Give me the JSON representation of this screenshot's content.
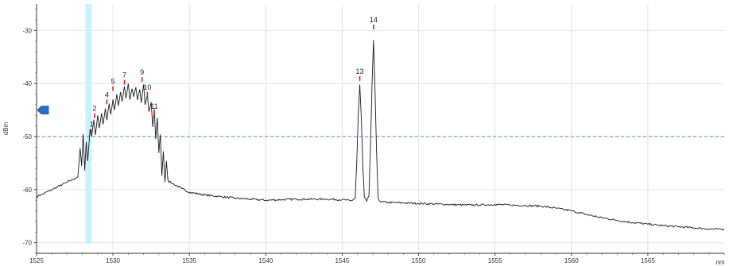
{
  "chart_data": {
    "type": "line",
    "title": "",
    "xlabel": "nm",
    "ylabel": "dBm",
    "xlim": [
      1525,
      1570
    ],
    "ylim": [
      -72,
      -25
    ],
    "x_ticks": [
      "1525",
      "1530",
      "1535",
      "1540",
      "1545",
      "1550",
      "1555",
      "1560",
      "1565"
    ],
    "y_ticks": [
      "-30",
      "-40",
      "-50",
      "-60",
      "-70"
    ],
    "threshold_dbm": -50,
    "reference_marker_dbm": -45,
    "highlight_band_nm": [
      1528.2,
      1528.6
    ],
    "grid": true,
    "colors": {
      "trace": "#1a1a1a",
      "peak_highlight": "#e02020",
      "threshold_line": "#5a8ac0",
      "highlight_band": "#c8f3fb",
      "marker": "#2a6fc4",
      "grid": "#e6e6e6"
    },
    "series": [
      {
        "points": [
          [
            1525.0,
            -61.3
          ],
          [
            1525.5,
            -60.7
          ],
          [
            1526.0,
            -60.0
          ],
          [
            1526.5,
            -59.3
          ],
          [
            1527.0,
            -58.6
          ],
          [
            1527.5,
            -57.9
          ],
          [
            1527.7,
            -57.6
          ],
          [
            1527.85,
            -52.2
          ],
          [
            1527.95,
            -55.5
          ],
          [
            1528.05,
            -49.5
          ],
          [
            1528.15,
            -56.4
          ],
          [
            1528.25,
            -51.0
          ],
          [
            1528.35,
            -54.6
          ],
          [
            1528.5,
            -48.6
          ],
          [
            1528.6,
            -50.0
          ],
          [
            1528.75,
            -46.8
          ],
          [
            1528.85,
            -49.7
          ],
          [
            1529.0,
            -46.0
          ],
          [
            1529.1,
            -48.4
          ],
          [
            1529.25,
            -45.6
          ],
          [
            1529.35,
            -47.7
          ],
          [
            1529.5,
            -44.7
          ],
          [
            1529.6,
            -46.9
          ],
          [
            1529.75,
            -43.8
          ],
          [
            1529.85,
            -45.8
          ],
          [
            1530.0,
            -43.0
          ],
          [
            1530.1,
            -45.0
          ],
          [
            1530.25,
            -42.0
          ],
          [
            1530.35,
            -44.2
          ],
          [
            1530.5,
            -41.6
          ],
          [
            1530.6,
            -43.4
          ],
          [
            1530.75,
            -40.5
          ],
          [
            1530.85,
            -42.8
          ],
          [
            1531.0,
            -40.0
          ],
          [
            1531.1,
            -43.0
          ],
          [
            1531.25,
            -41.0
          ],
          [
            1531.35,
            -42.5
          ],
          [
            1531.5,
            -40.7
          ],
          [
            1531.6,
            -43.1
          ],
          [
            1531.75,
            -41.1
          ],
          [
            1531.85,
            -43.6
          ],
          [
            1532.0,
            -40.2
          ],
          [
            1532.1,
            -44.0
          ],
          [
            1532.25,
            -42.1
          ],
          [
            1532.35,
            -45.3
          ],
          [
            1532.5,
            -43.5
          ],
          [
            1532.6,
            -48.2
          ],
          [
            1532.7,
            -44.8
          ],
          [
            1532.8,
            -50.5
          ],
          [
            1532.9,
            -46.4
          ],
          [
            1533.0,
            -53.1
          ],
          [
            1533.1,
            -49.6
          ],
          [
            1533.2,
            -57.4
          ],
          [
            1533.3,
            -52.8
          ],
          [
            1533.4,
            -58.6
          ],
          [
            1533.5,
            -54.6
          ],
          [
            1533.6,
            -58.3
          ],
          [
            1533.8,
            -58.7
          ],
          [
            1534.0,
            -59.0
          ],
          [
            1534.5,
            -59.8
          ],
          [
            1535.0,
            -60.5
          ],
          [
            1536.0,
            -61.0
          ],
          [
            1537.0,
            -61.3
          ],
          [
            1538.0,
            -61.6
          ],
          [
            1539.0,
            -61.8
          ],
          [
            1540.0,
            -62.0
          ],
          [
            1541.0,
            -61.9
          ],
          [
            1542.0,
            -61.8
          ],
          [
            1543.0,
            -61.8
          ],
          [
            1544.0,
            -61.8
          ],
          [
            1545.0,
            -61.9
          ],
          [
            1545.6,
            -62.1
          ],
          [
            1545.85,
            -61.6
          ],
          [
            1545.95,
            -55.0
          ],
          [
            1546.05,
            -46.0
          ],
          [
            1546.15,
            -40.2
          ],
          [
            1546.25,
            -46.5
          ],
          [
            1546.35,
            -55.5
          ],
          [
            1546.45,
            -61.4
          ],
          [
            1546.6,
            -62.2
          ],
          [
            1546.75,
            -61.2
          ],
          [
            1546.85,
            -52.0
          ],
          [
            1546.95,
            -40.5
          ],
          [
            1547.05,
            -31.8
          ],
          [
            1547.15,
            -41.5
          ],
          [
            1547.25,
            -53.0
          ],
          [
            1547.35,
            -61.6
          ],
          [
            1547.5,
            -62.3
          ],
          [
            1548.0,
            -62.4
          ],
          [
            1549.0,
            -62.5
          ],
          [
            1550.0,
            -62.6
          ],
          [
            1551.0,
            -62.7
          ],
          [
            1552.0,
            -62.8
          ],
          [
            1553.0,
            -62.9
          ],
          [
            1554.0,
            -62.9
          ],
          [
            1555.0,
            -62.8
          ],
          [
            1556.0,
            -62.9
          ],
          [
            1557.0,
            -63.0
          ],
          [
            1558.0,
            -63.1
          ],
          [
            1559.0,
            -63.5
          ],
          [
            1560.0,
            -64.0
          ],
          [
            1561.0,
            -64.7
          ],
          [
            1562.0,
            -65.3
          ],
          [
            1563.0,
            -65.8
          ],
          [
            1564.0,
            -66.2
          ],
          [
            1565.0,
            -66.5
          ],
          [
            1566.0,
            -66.8
          ],
          [
            1567.0,
            -67.0
          ],
          [
            1568.0,
            -67.2
          ],
          [
            1569.0,
            -67.4
          ],
          [
            1570.0,
            -67.5
          ]
        ]
      }
    ],
    "peaks": [
      {
        "label": "1",
        "x": 1528.6,
        "y": -48.6
      },
      {
        "label": "2",
        "x": 1528.8,
        "y": -45.6
      },
      {
        "label": "4",
        "x": 1529.6,
        "y": -43.0
      },
      {
        "label": "5",
        "x": 1530.0,
        "y": -40.5
      },
      {
        "label": "7",
        "x": 1530.75,
        "y": -39.3
      },
      {
        "label": "9",
        "x": 1531.9,
        "y": -38.8
      },
      {
        "label": "10",
        "x": 1532.25,
        "y": -41.6
      },
      {
        "label": "11",
        "x": 1532.7,
        "y": -45.2
      },
      {
        "label": "13",
        "x": 1546.15,
        "y": -38.6
      },
      {
        "label": "14",
        "x": 1547.05,
        "y": -28.9
      }
    ]
  }
}
